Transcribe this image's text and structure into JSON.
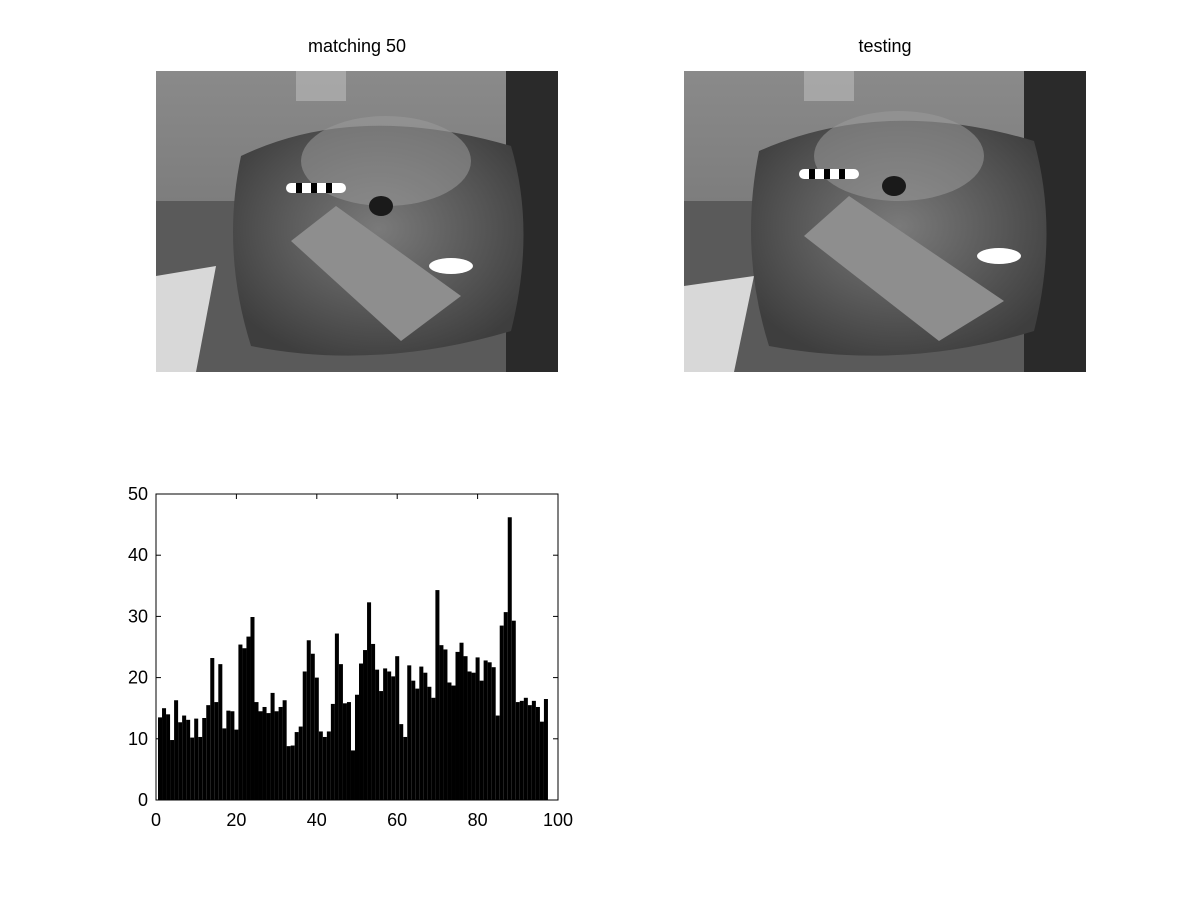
{
  "figure": {
    "left_title": "matching 50",
    "right_title": "testing"
  },
  "images": [
    {
      "name": "matching-image",
      "content": "grayscale photo of a glass fish bowl with striped fish and a stone"
    },
    {
      "name": "testing-image",
      "content": "grayscale photo of a glass fish bowl with striped fish and a stone"
    }
  ],
  "chart_data": {
    "type": "bar",
    "xlim": [
      0,
      100
    ],
    "ylim": [
      0,
      50
    ],
    "xticks": [
      0,
      20,
      40,
      60,
      80,
      100
    ],
    "yticks": [
      0,
      10,
      20,
      30,
      40,
      50
    ],
    "bar_color": "#000000",
    "grid": false,
    "x": [
      1,
      2,
      3,
      4,
      5,
      6,
      7,
      8,
      9,
      10,
      11,
      12,
      13,
      14,
      15,
      16,
      17,
      18,
      19,
      20,
      21,
      22,
      23,
      24,
      25,
      26,
      27,
      28,
      29,
      30,
      31,
      32,
      33,
      34,
      35,
      36,
      37,
      38,
      39,
      40,
      41,
      42,
      43,
      44,
      45,
      46,
      47,
      48,
      49,
      50,
      51,
      52,
      53,
      54,
      55,
      56,
      57,
      58,
      59,
      60,
      61,
      62,
      63,
      64,
      65,
      66,
      67,
      68,
      69,
      70,
      71,
      72,
      73,
      74,
      75,
      76,
      77,
      78,
      79,
      80,
      81,
      82,
      83,
      84,
      85,
      86,
      87,
      88,
      89,
      90,
      91,
      92,
      93,
      94,
      95,
      96,
      97,
      98,
      99,
      100
    ],
    "values": [
      13.5,
      15,
      14,
      9.8,
      16.3,
      12.7,
      13.8,
      13.1,
      10.2,
      13.3,
      10.3,
      13.4,
      15.5,
      23.2,
      16,
      22.2,
      11.7,
      14.6,
      14.5,
      11.5,
      25.4,
      24.8,
      26.7,
      29.9,
      16,
      14.5,
      15.2,
      14.2,
      17.5,
      14.5,
      15.2,
      16.3,
      8.8,
      8.9,
      11.1,
      12,
      21,
      26.1,
      23.9,
      20,
      11.2,
      10.3,
      11.2,
      15.7,
      27.2,
      22.2,
      15.8,
      16,
      8.1,
      17.2,
      22.3,
      24.5,
      32.3,
      25.5,
      21.3,
      17.8,
      21.5,
      21,
      20.2,
      23.5,
      12.4,
      10.3,
      22,
      19.5,
      18.2,
      21.8,
      20.8,
      18.5,
      16.7,
      34.3,
      25.3,
      24.6,
      19.2,
      18.7,
      24.2,
      25.7,
      23.5,
      21,
      20.8,
      23.3,
      19.5,
      22.8,
      22.5,
      21.7,
      13.8,
      28.5,
      30.7,
      46.2,
      29.3,
      16,
      16.2,
      16.7,
      15.5,
      16.2,
      15.2,
      12.8,
      16.5,
      0,
      0,
      0
    ]
  }
}
